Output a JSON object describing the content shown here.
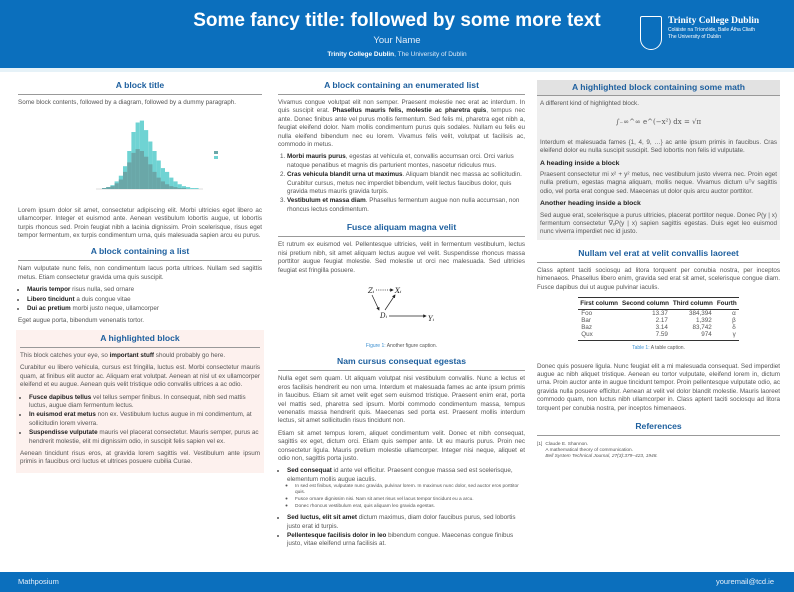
{
  "header": {
    "title": "Some fancy title: followed by some more text",
    "author": "Your Name",
    "affiliation_bold": "Trinity College Dublin",
    "affiliation_rest": ", The University of Dublin",
    "logo": {
      "name": "Trinity College Dublin",
      "irish": "Coláiste na Tríonóide, Baile Átha Cliath",
      "sub": "The University of Dublin"
    }
  },
  "col1": {
    "block1": {
      "title": "A block title",
      "intro": "Some block contents, followed by a diagram, followed by a dummy paragraph.",
      "para": "Lorem ipsum dolor sit amet, consectetur adipiscing elit. Morbi ultricies eget libero ac ullamcorper. Integer et euismod ante. Aenean vestibulum lobortis augue, ut lobortis turpis rhoncus sed. Proin feugiat nibh a lacinia dignissim. Proin scelerisque, risus eget tempor fermentum, ex turpis condimentum urna, quis malesuada sapien arcu eu purus."
    },
    "block2": {
      "title": "A block containing a list",
      "intro": "Nam vulputate nunc felis, non condimentum lacus porta ultrices. Nullam sed sagittis metus. Etiam consectetur gravida urna quis suscipit.",
      "items": [
        {
          "b": "Mauris tempor",
          "t": " risus nulla, sed ornare"
        },
        {
          "b": "Libero tincidunt",
          "t": " a duis congue vitae"
        },
        {
          "b": "Dui ac pretium",
          "t": " morbi justo neque, ullamcorper"
        }
      ],
      "outro": "Eget augue porta, bibendum venenatis tortor."
    },
    "block3": {
      "title": "A highlighted block",
      "p1a": "This block catches your eye, so ",
      "p1b": "important stuff",
      "p1c": " should probably go here.",
      "p2": "Curabitur eu libero vehicula, cursus est fringilla, luctus est. Morbi consectetur mauris quam, at finibus elit auctor ac. Aliquam erat volutpat. Aenean at nisl ut ex ullamcorper eleifend et eu augue. Aenean quis velit tristique odio convallis ultrices a ac odio.",
      "items": [
        {
          "b": "Fusce dapibus tellus",
          "t": " vel tellus semper finibus. In consequat, nibh sed mattis luctus, augue diam fermentum lectus."
        },
        {
          "b": "In euismod erat metus",
          "t": " non ex. Vestibulum luctus augue in mi condimentum, at sollicitudin lorem viverra."
        },
        {
          "b": "Suspendisse vulputate",
          "t": " mauris vel placerat consectetur. Mauris semper, purus ac hendrerit molestie, elit mi dignissim odio, in suscipit felis sapien vel ex."
        }
      ],
      "p3": "Aenean tincidunt risus eros, at gravida lorem sagittis vel. Vestibulum ante ipsum primis in faucibus orci luctus et ultrices posuere cubilia Curae."
    }
  },
  "col2": {
    "block1": {
      "title": "A block containing an enumerated list",
      "p1a": "Vivamus congue volutpat elit non semper. Praesent molestie nec erat ac interdum. In quis suscipit erat. ",
      "p1b": "Phasellus mauris felis, molestie ac pharetra quis",
      "p1c": ", tempus nec ante. Donec finibus ante vel purus mollis fermentum. Sed felis mi, pharetra eget nibh a, feugiat eleifend dolor. Nam mollis condimentum purus quis sodales. Nullam eu felis eu nulla eleifend bibendum nec eu lorem. Vivamus felis velit, volutpat ut facilisis ac, commodo in metus.",
      "items": [
        {
          "b": "Morbi mauris purus",
          "t": ", egestas at vehicula et, convallis accumsan orci. Orci varius natoque penatibus et magnis dis parturient montes, nascetur ridiculus mus."
        },
        {
          "b": "Cras vehicula blandit urna ut maximus",
          "t": ". Aliquam blandit nec massa ac sollicitudin. Curabitur cursus, metus nec imperdiet bibendum, velit lectus faucibus dolor, quis gravida metus mauris gravida turpis."
        },
        {
          "b": "Vestibulum et massa diam",
          "t": ". Phasellus fermentum augue non nulla accumsan, non rhoncus lectus condimentum."
        }
      ]
    },
    "block2": {
      "title": "Fusce aliquam magna velit",
      "para": "Et rutrum ex euismod vel. Pellentesque ultricies, velit in fermentum vestibulum, lectus nisi pretium nibh, sit amet aliquam lectus augue vel velit. Suspendisse rhoncus massa porttitor augue feugiat molestie. Sed molestie ut orci nec malesuada. Sed ultricies feugiat est fringilla posuere.",
      "diagram": {
        "z": "Zᵢ",
        "x": "Xᵢ",
        "d": "Dᵢ",
        "y": "Yᵢ"
      },
      "caption_label": "Figure 1:",
      "caption": " Another figure caption."
    },
    "block3": {
      "title": "Nam cursus consequat egestas",
      "p1": "Nulla eget sem quam. Ut aliquam volutpat nisi vestibulum convallis. Nunc a lectus et eros facilisis hendrerit eu non urna. Interdum et malesuada fames ac ante ipsum primis in faucibus. Etiam sit amet velit eget sem euismod tristique. Praesent enim erat, porta vel mattis sed, pharetra sed ipsum. Morbi commodo condimentum massa, tempus venenatis massa hendrerit quis. Maecenas sed porta est. Praesent mollis interdum lectus, sit amet sollicitudin risus tincidunt non.",
      "p2": "Etiam sit amet tempus lorem, aliquet condimentum velit. Donec et nibh consequat, sagittis ex eget, dictum orci. Etiam quis semper ante. Ut eu mauris purus. Proin nec consectetur ligula. Mauris pretium molestie ullamcorper. Integer nisi neque, aliquet et odio non, sagittis porta justo.",
      "items": [
        {
          "b": "Sed consequat",
          "t": " id ante vel efficitur. Praesent congue massa sed est scelerisque, elementum mollis augue iaculis."
        },
        {
          "b": "Sed luctus, elit sit amet",
          "t": " dictum maximus, diam dolor faucibus purus, sed lobortis justo erat id turpis."
        },
        {
          "b": "Pellentesque facilisis dolor in leo",
          "t": " bibendum congue. Maecenas congue finibus justo, vitae eleifend urna facilisis at."
        }
      ],
      "subitems": [
        "In sed est finibus, vulputate nunc gravida, pulvinar lorem. In maximus nunc dolor, sed auctor eros porttitor quis.",
        "Fusce ornare dignissim nisi. Nam sit amet risus vel lacus tempor tincidunt eu a arcu.",
        "Donec rhoncus vestibulum erat, quis aliquam leo gravida egestas."
      ]
    }
  },
  "col3": {
    "block1": {
      "title": "A highlighted block containing some math",
      "intro": "A different kind of highlighted block.",
      "equation": "∫₋∞^∞ e^(−x²) dx = √π",
      "p2": "Interdum et malesuada fames {1, 4, 9, …} ac ante ipsum primis in faucibus. Cras eleifend dolor eu nulla suscipit suscipit. Sed lobortis non felis id vulputate.",
      "h1": "A heading inside a block",
      "p3": "Praesent consectetur mi x² + y² metus, nec vestibulum justo viverra nec. Proin eget nulla pretium, egestas magna aliquam, mollis neque. Vivamus dictum uᵀv sagittis odio, vel porta erat congue sed. Maecenas ut dolor quis arcu auctor porttitor.",
      "h2": "Another heading inside a block",
      "p4": "Sed augue erat, scelerisque a purus ultricies, placerat porttitor neque. Donec P(y | x) fermentum consectetur ∇ₓP(y | x) sapien sagittis egestas. Duis eget leo euismod nunc viverra imperdiet nec id justo."
    },
    "block2": {
      "title": "Nullam vel erat at velit convallis laoreet",
      "p1": "Class aptent taciti sociosqu ad litora torquent per conubia nostra, per inceptos himenaeos. Phasellus libero enim, gravida sed erat sit amet, scelerisque congue diam. Fusce dapibus dui ut augue pulvinar iaculis.",
      "table": {
        "headers": [
          "First column",
          "Second column",
          "Third column",
          "Fourth"
        ],
        "rows": [
          [
            "Foo",
            "13.37",
            "384,394",
            "α"
          ],
          [
            "Bar",
            "2.17",
            "1,392",
            "β"
          ],
          [
            "Baz",
            "3.14",
            "83,742",
            "δ"
          ],
          [
            "Qux",
            "7.59",
            "974",
            "γ"
          ]
        ]
      },
      "caption_label": "Table 1:",
      "caption": " A table caption.",
      "p2": "Donec quis posuere ligula. Nunc feugiat elit a mi malesuada consequat. Sed imperdiet augue ac nibh aliquet tristique. Aenean eu tortor vulputate, eleifend lorem in, dictum urna. Proin auctor ante in augue tincidunt tempor. Proin pellentesque vulputate odio, ac gravida nulla posuere efficitur. Aenean at velit vel dolor blandit molestie. Mauris laoreet commodo quam, non luctus nibh ullamcorper in. Class aptent taciti sociosqu ad litora torquent per conubia nostra, per inceptos himenaeos."
    },
    "refs": {
      "title": "References",
      "items": [
        {
          "num": "[1]",
          "l1": "Claude E. Shannon.",
          "l2": "A mathematical theory of communication.",
          "l3": "Bell System Technical Journal, 27(3):379–423, 1948."
        }
      ]
    }
  },
  "footer": {
    "left": "Mathposium",
    "right": "youremail@tcd.ie"
  },
  "colors": {
    "header": "#0b6fbd",
    "title": "#1d5f9e",
    "highlight": "#fdf1ee",
    "mathblock": "#efefef"
  }
}
